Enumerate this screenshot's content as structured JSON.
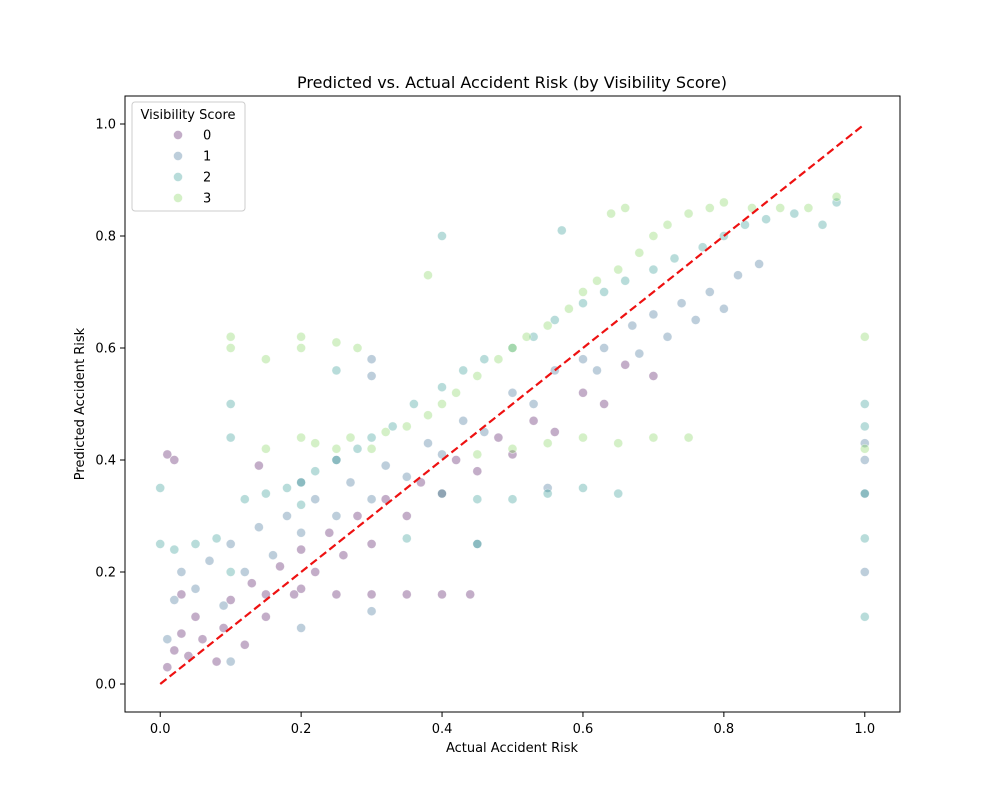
{
  "chart_data": {
    "type": "scatter",
    "title": "Predicted vs. Actual Accident Risk (by Visibility Score)",
    "xlabel": "Actual Accident Risk",
    "ylabel": "Predicted Accident Risk",
    "xlim": [
      -0.05,
      1.05
    ],
    "ylim": [
      -0.05,
      1.05
    ],
    "xticks": [
      0.0,
      0.2,
      0.4,
      0.6,
      0.8,
      1.0
    ],
    "yticks": [
      0.0,
      0.2,
      0.4,
      0.6,
      0.8,
      1.0
    ],
    "xtick_labels": [
      "0.0",
      "0.2",
      "0.4",
      "0.6",
      "0.8",
      "1.0"
    ],
    "ytick_labels": [
      "0.0",
      "0.2",
      "0.4",
      "0.6",
      "0.8",
      "1.0"
    ],
    "grid": false,
    "legend": {
      "title": "Visibility Score",
      "placement": "upper-left",
      "entries": [
        "0",
        "1",
        "2",
        "3"
      ]
    },
    "reference_line": {
      "x": [
        0.0,
        1.0
      ],
      "y": [
        0.0,
        1.0
      ],
      "color": "#ee1111",
      "style": "dashed"
    },
    "series": [
      {
        "name": "0",
        "color": "#440154",
        "points": [
          [
            0.01,
            0.03
          ],
          [
            0.02,
            0.06
          ],
          [
            0.03,
            0.09
          ],
          [
            0.04,
            0.05
          ],
          [
            0.05,
            0.12
          ],
          [
            0.06,
            0.08
          ],
          [
            0.08,
            0.04
          ],
          [
            0.09,
            0.1
          ],
          [
            0.1,
            0.15
          ],
          [
            0.12,
            0.07
          ],
          [
            0.13,
            0.18
          ],
          [
            0.15,
            0.12
          ],
          [
            0.17,
            0.21
          ],
          [
            0.19,
            0.16
          ],
          [
            0.2,
            0.24
          ],
          [
            0.22,
            0.2
          ],
          [
            0.24,
            0.27
          ],
          [
            0.26,
            0.23
          ],
          [
            0.28,
            0.3
          ],
          [
            0.3,
            0.25
          ],
          [
            0.32,
            0.33
          ],
          [
            0.35,
            0.3
          ],
          [
            0.37,
            0.36
          ],
          [
            0.4,
            0.34
          ],
          [
            0.42,
            0.4
          ],
          [
            0.45,
            0.38
          ],
          [
            0.48,
            0.44
          ],
          [
            0.5,
            0.41
          ],
          [
            0.53,
            0.47
          ],
          [
            0.56,
            0.45
          ],
          [
            0.6,
            0.52
          ],
          [
            0.63,
            0.5
          ],
          [
            0.66,
            0.57
          ],
          [
            0.7,
            0.55
          ],
          [
            0.25,
            0.16
          ],
          [
            0.3,
            0.16
          ],
          [
            0.35,
            0.16
          ],
          [
            0.4,
            0.16
          ],
          [
            0.44,
            0.16
          ],
          [
            0.2,
            0.17
          ],
          [
            0.15,
            0.16
          ],
          [
            0.03,
            0.16
          ],
          [
            0.01,
            0.41
          ],
          [
            0.02,
            0.4
          ],
          [
            0.14,
            0.39
          ]
        ]
      },
      {
        "name": "1",
        "color": "#31688e",
        "points": [
          [
            0.01,
            0.08
          ],
          [
            0.02,
            0.15
          ],
          [
            0.03,
            0.2
          ],
          [
            0.05,
            0.17
          ],
          [
            0.07,
            0.22
          ],
          [
            0.09,
            0.14
          ],
          [
            0.1,
            0.25
          ],
          [
            0.12,
            0.2
          ],
          [
            0.14,
            0.28
          ],
          [
            0.16,
            0.23
          ],
          [
            0.18,
            0.3
          ],
          [
            0.2,
            0.27
          ],
          [
            0.22,
            0.33
          ],
          [
            0.25,
            0.3
          ],
          [
            0.27,
            0.36
          ],
          [
            0.3,
            0.33
          ],
          [
            0.32,
            0.39
          ],
          [
            0.35,
            0.37
          ],
          [
            0.38,
            0.43
          ],
          [
            0.4,
            0.41
          ],
          [
            0.43,
            0.47
          ],
          [
            0.46,
            0.45
          ],
          [
            0.5,
            0.52
          ],
          [
            0.53,
            0.5
          ],
          [
            0.56,
            0.56
          ],
          [
            0.6,
            0.58
          ],
          [
            0.63,
            0.6
          ],
          [
            0.67,
            0.64
          ],
          [
            0.7,
            0.66
          ],
          [
            0.74,
            0.68
          ],
          [
            0.78,
            0.7
          ],
          [
            0.82,
            0.73
          ],
          [
            0.85,
            0.75
          ],
          [
            0.3,
            0.58
          ],
          [
            0.3,
            0.55
          ],
          [
            0.2,
            0.36
          ],
          [
            0.25,
            0.4
          ],
          [
            0.62,
            0.56
          ],
          [
            0.68,
            0.59
          ],
          [
            0.72,
            0.62
          ],
          [
            0.76,
            0.65
          ],
          [
            0.8,
            0.67
          ],
          [
            1.0,
            0.4
          ],
          [
            1.0,
            0.34
          ],
          [
            1.0,
            0.2
          ],
          [
            1.0,
            0.43
          ],
          [
            0.1,
            0.04
          ],
          [
            0.2,
            0.1
          ],
          [
            0.3,
            0.13
          ],
          [
            0.45,
            0.25
          ],
          [
            0.55,
            0.35
          ]
        ]
      },
      {
        "name": "2",
        "color": "#21918c",
        "points": [
          [
            0.0,
            0.35
          ],
          [
            0.0,
            0.25
          ],
          [
            0.02,
            0.24
          ],
          [
            0.05,
            0.25
          ],
          [
            0.08,
            0.26
          ],
          [
            0.1,
            0.5
          ],
          [
            0.1,
            0.44
          ],
          [
            0.12,
            0.33
          ],
          [
            0.15,
            0.34
          ],
          [
            0.18,
            0.35
          ],
          [
            0.2,
            0.36
          ],
          [
            0.22,
            0.38
          ],
          [
            0.25,
            0.4
          ],
          [
            0.28,
            0.42
          ],
          [
            0.3,
            0.44
          ],
          [
            0.33,
            0.46
          ],
          [
            0.36,
            0.5
          ],
          [
            0.4,
            0.53
          ],
          [
            0.43,
            0.56
          ],
          [
            0.46,
            0.58
          ],
          [
            0.5,
            0.6
          ],
          [
            0.53,
            0.62
          ],
          [
            0.56,
            0.65
          ],
          [
            0.6,
            0.68
          ],
          [
            0.63,
            0.7
          ],
          [
            0.66,
            0.72
          ],
          [
            0.7,
            0.74
          ],
          [
            0.73,
            0.76
          ],
          [
            0.77,
            0.78
          ],
          [
            0.8,
            0.8
          ],
          [
            0.83,
            0.82
          ],
          [
            0.86,
            0.83
          ],
          [
            0.9,
            0.84
          ],
          [
            0.94,
            0.82
          ],
          [
            0.96,
            0.86
          ],
          [
            0.4,
            0.34
          ],
          [
            0.45,
            0.33
          ],
          [
            0.5,
            0.33
          ],
          [
            0.55,
            0.34
          ],
          [
            0.6,
            0.35
          ],
          [
            0.65,
            0.34
          ],
          [
            0.45,
            0.25
          ],
          [
            0.35,
            0.26
          ],
          [
            0.2,
            0.32
          ],
          [
            0.1,
            0.2
          ],
          [
            0.57,
            0.81
          ],
          [
            0.4,
            0.8
          ],
          [
            1.0,
            0.5
          ],
          [
            1.0,
            0.12
          ],
          [
            1.0,
            0.26
          ],
          [
            1.0,
            0.46
          ],
          [
            1.0,
            0.34
          ],
          [
            0.25,
            0.56
          ]
        ]
      },
      {
        "name": "3",
        "color": "#7ad151",
        "points": [
          [
            0.1,
            0.62
          ],
          [
            0.1,
            0.6
          ],
          [
            0.15,
            0.58
          ],
          [
            0.2,
            0.6
          ],
          [
            0.2,
            0.62
          ],
          [
            0.25,
            0.61
          ],
          [
            0.28,
            0.6
          ],
          [
            0.2,
            0.44
          ],
          [
            0.22,
            0.43
          ],
          [
            0.25,
            0.42
          ],
          [
            0.27,
            0.44
          ],
          [
            0.3,
            0.42
          ],
          [
            0.32,
            0.45
          ],
          [
            0.35,
            0.46
          ],
          [
            0.38,
            0.48
          ],
          [
            0.4,
            0.5
          ],
          [
            0.42,
            0.52
          ],
          [
            0.45,
            0.55
          ],
          [
            0.48,
            0.58
          ],
          [
            0.5,
            0.6
          ],
          [
            0.52,
            0.62
          ],
          [
            0.55,
            0.64
          ],
          [
            0.58,
            0.67
          ],
          [
            0.6,
            0.7
          ],
          [
            0.62,
            0.72
          ],
          [
            0.65,
            0.74
          ],
          [
            0.68,
            0.77
          ],
          [
            0.7,
            0.8
          ],
          [
            0.72,
            0.82
          ],
          [
            0.75,
            0.84
          ],
          [
            0.78,
            0.85
          ],
          [
            0.8,
            0.86
          ],
          [
            0.84,
            0.85
          ],
          [
            0.88,
            0.85
          ],
          [
            0.92,
            0.85
          ],
          [
            0.96,
            0.87
          ],
          [
            0.66,
            0.85
          ],
          [
            0.64,
            0.84
          ],
          [
            0.38,
            0.73
          ],
          [
            0.5,
            0.42
          ],
          [
            0.55,
            0.43
          ],
          [
            0.6,
            0.44
          ],
          [
            0.65,
            0.43
          ],
          [
            0.7,
            0.44
          ],
          [
            0.75,
            0.44
          ],
          [
            0.45,
            0.41
          ],
          [
            1.0,
            0.62
          ],
          [
            1.0,
            0.42
          ],
          [
            0.15,
            0.42
          ]
        ]
      }
    ]
  }
}
